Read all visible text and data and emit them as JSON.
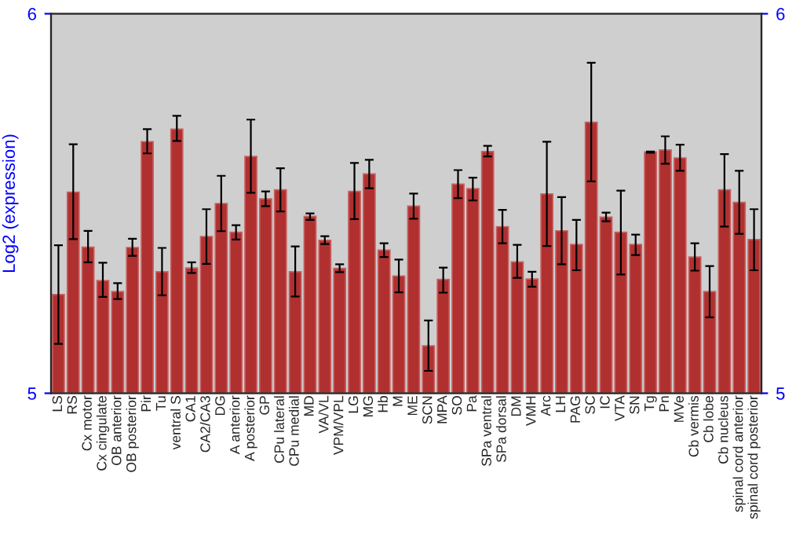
{
  "chart_data": {
    "type": "bar",
    "ylabel": "Log2 (expression)",
    "categories": [
      "LS",
      "RS",
      "Cx motor",
      "Cx cingulate",
      "OB anterior",
      "OB posterior",
      "Pir",
      "Tu",
      "ventral S",
      "CA1",
      "CA2/CA3",
      "DG",
      "A anterior",
      "A posterior",
      "GP",
      "CPu lateral",
      "CPu medial",
      "MD",
      "VA/VL",
      "VPM/VPL",
      "LG",
      "MG",
      "Hb",
      "M",
      "ME",
      "SCN",
      "MPA",
      "SO",
      "Pa",
      "SPa ventral",
      "SPa dorsal",
      "DM",
      "VMH",
      "Arc",
      "LH",
      "PAG",
      "SC",
      "IC",
      "VTA",
      "SN",
      "Tg",
      "Pn",
      "MVe",
      "Cb vermis",
      "Cb lobe",
      "Cb nucleus",
      "spinal cord anterior",
      "spinal cord posterior"
    ],
    "values": [
      5.26,
      5.53,
      5.385,
      5.297,
      5.268,
      5.384,
      5.663,
      5.32,
      5.696,
      5.33,
      5.413,
      5.5,
      5.424,
      5.624,
      5.512,
      5.536,
      5.32,
      5.466,
      5.403,
      5.329,
      5.532,
      5.578,
      5.377,
      5.309,
      5.493,
      5.125,
      5.3,
      5.551,
      5.539,
      5.637,
      5.439,
      5.346,
      5.301,
      5.525,
      5.428,
      5.392,
      5.714,
      5.464,
      5.424,
      5.392,
      5.636,
      5.641,
      5.62,
      5.359,
      5.268,
      5.536,
      5.503,
      5.405
    ],
    "errors": [
      [
        5.13,
        5.39
      ],
      [
        5.406,
        5.656
      ],
      [
        5.345,
        5.428
      ],
      [
        5.254,
        5.344
      ],
      [
        5.248,
        5.29
      ],
      [
        5.362,
        5.407
      ],
      [
        5.632,
        5.696
      ],
      [
        5.258,
        5.383
      ],
      [
        5.665,
        5.731
      ],
      [
        5.317,
        5.345
      ],
      [
        5.341,
        5.485
      ],
      [
        5.427,
        5.573
      ],
      [
        5.405,
        5.443
      ],
      [
        5.528,
        5.721
      ],
      [
        5.493,
        5.532
      ],
      [
        5.479,
        5.593
      ],
      [
        5.255,
        5.387
      ],
      [
        5.457,
        5.474
      ],
      [
        5.393,
        5.414
      ],
      [
        5.319,
        5.34
      ],
      [
        5.459,
        5.607
      ],
      [
        5.54,
        5.615
      ],
      [
        5.359,
        5.395
      ],
      [
        5.266,
        5.352
      ],
      [
        5.46,
        5.526
      ],
      [
        5.059,
        5.192
      ],
      [
        5.265,
        5.331
      ],
      [
        5.514,
        5.588
      ],
      [
        5.508,
        5.568
      ],
      [
        5.624,
        5.652
      ],
      [
        5.395,
        5.483
      ],
      [
        5.304,
        5.391
      ],
      [
        5.281,
        5.32
      ],
      [
        5.388,
        5.663
      ],
      [
        5.34,
        5.517
      ],
      [
        5.324,
        5.457
      ],
      [
        5.558,
        5.871
      ],
      [
        5.453,
        5.476
      ],
      [
        5.313,
        5.534
      ],
      [
        5.364,
        5.418
      ],
      [
        5.634,
        5.637
      ],
      [
        5.605,
        5.677
      ],
      [
        5.586,
        5.655
      ],
      [
        5.323,
        5.395
      ],
      [
        5.2,
        5.335
      ],
      [
        5.439,
        5.63
      ],
      [
        5.42,
        5.586
      ],
      [
        5.324,
        5.485
      ]
    ],
    "color": "#b03030",
    "ylim": [
      5,
      6
    ],
    "yticks": [
      5,
      6
    ],
    "y2lim": [
      5,
      6
    ],
    "y2ticks": [
      5,
      6
    ]
  }
}
